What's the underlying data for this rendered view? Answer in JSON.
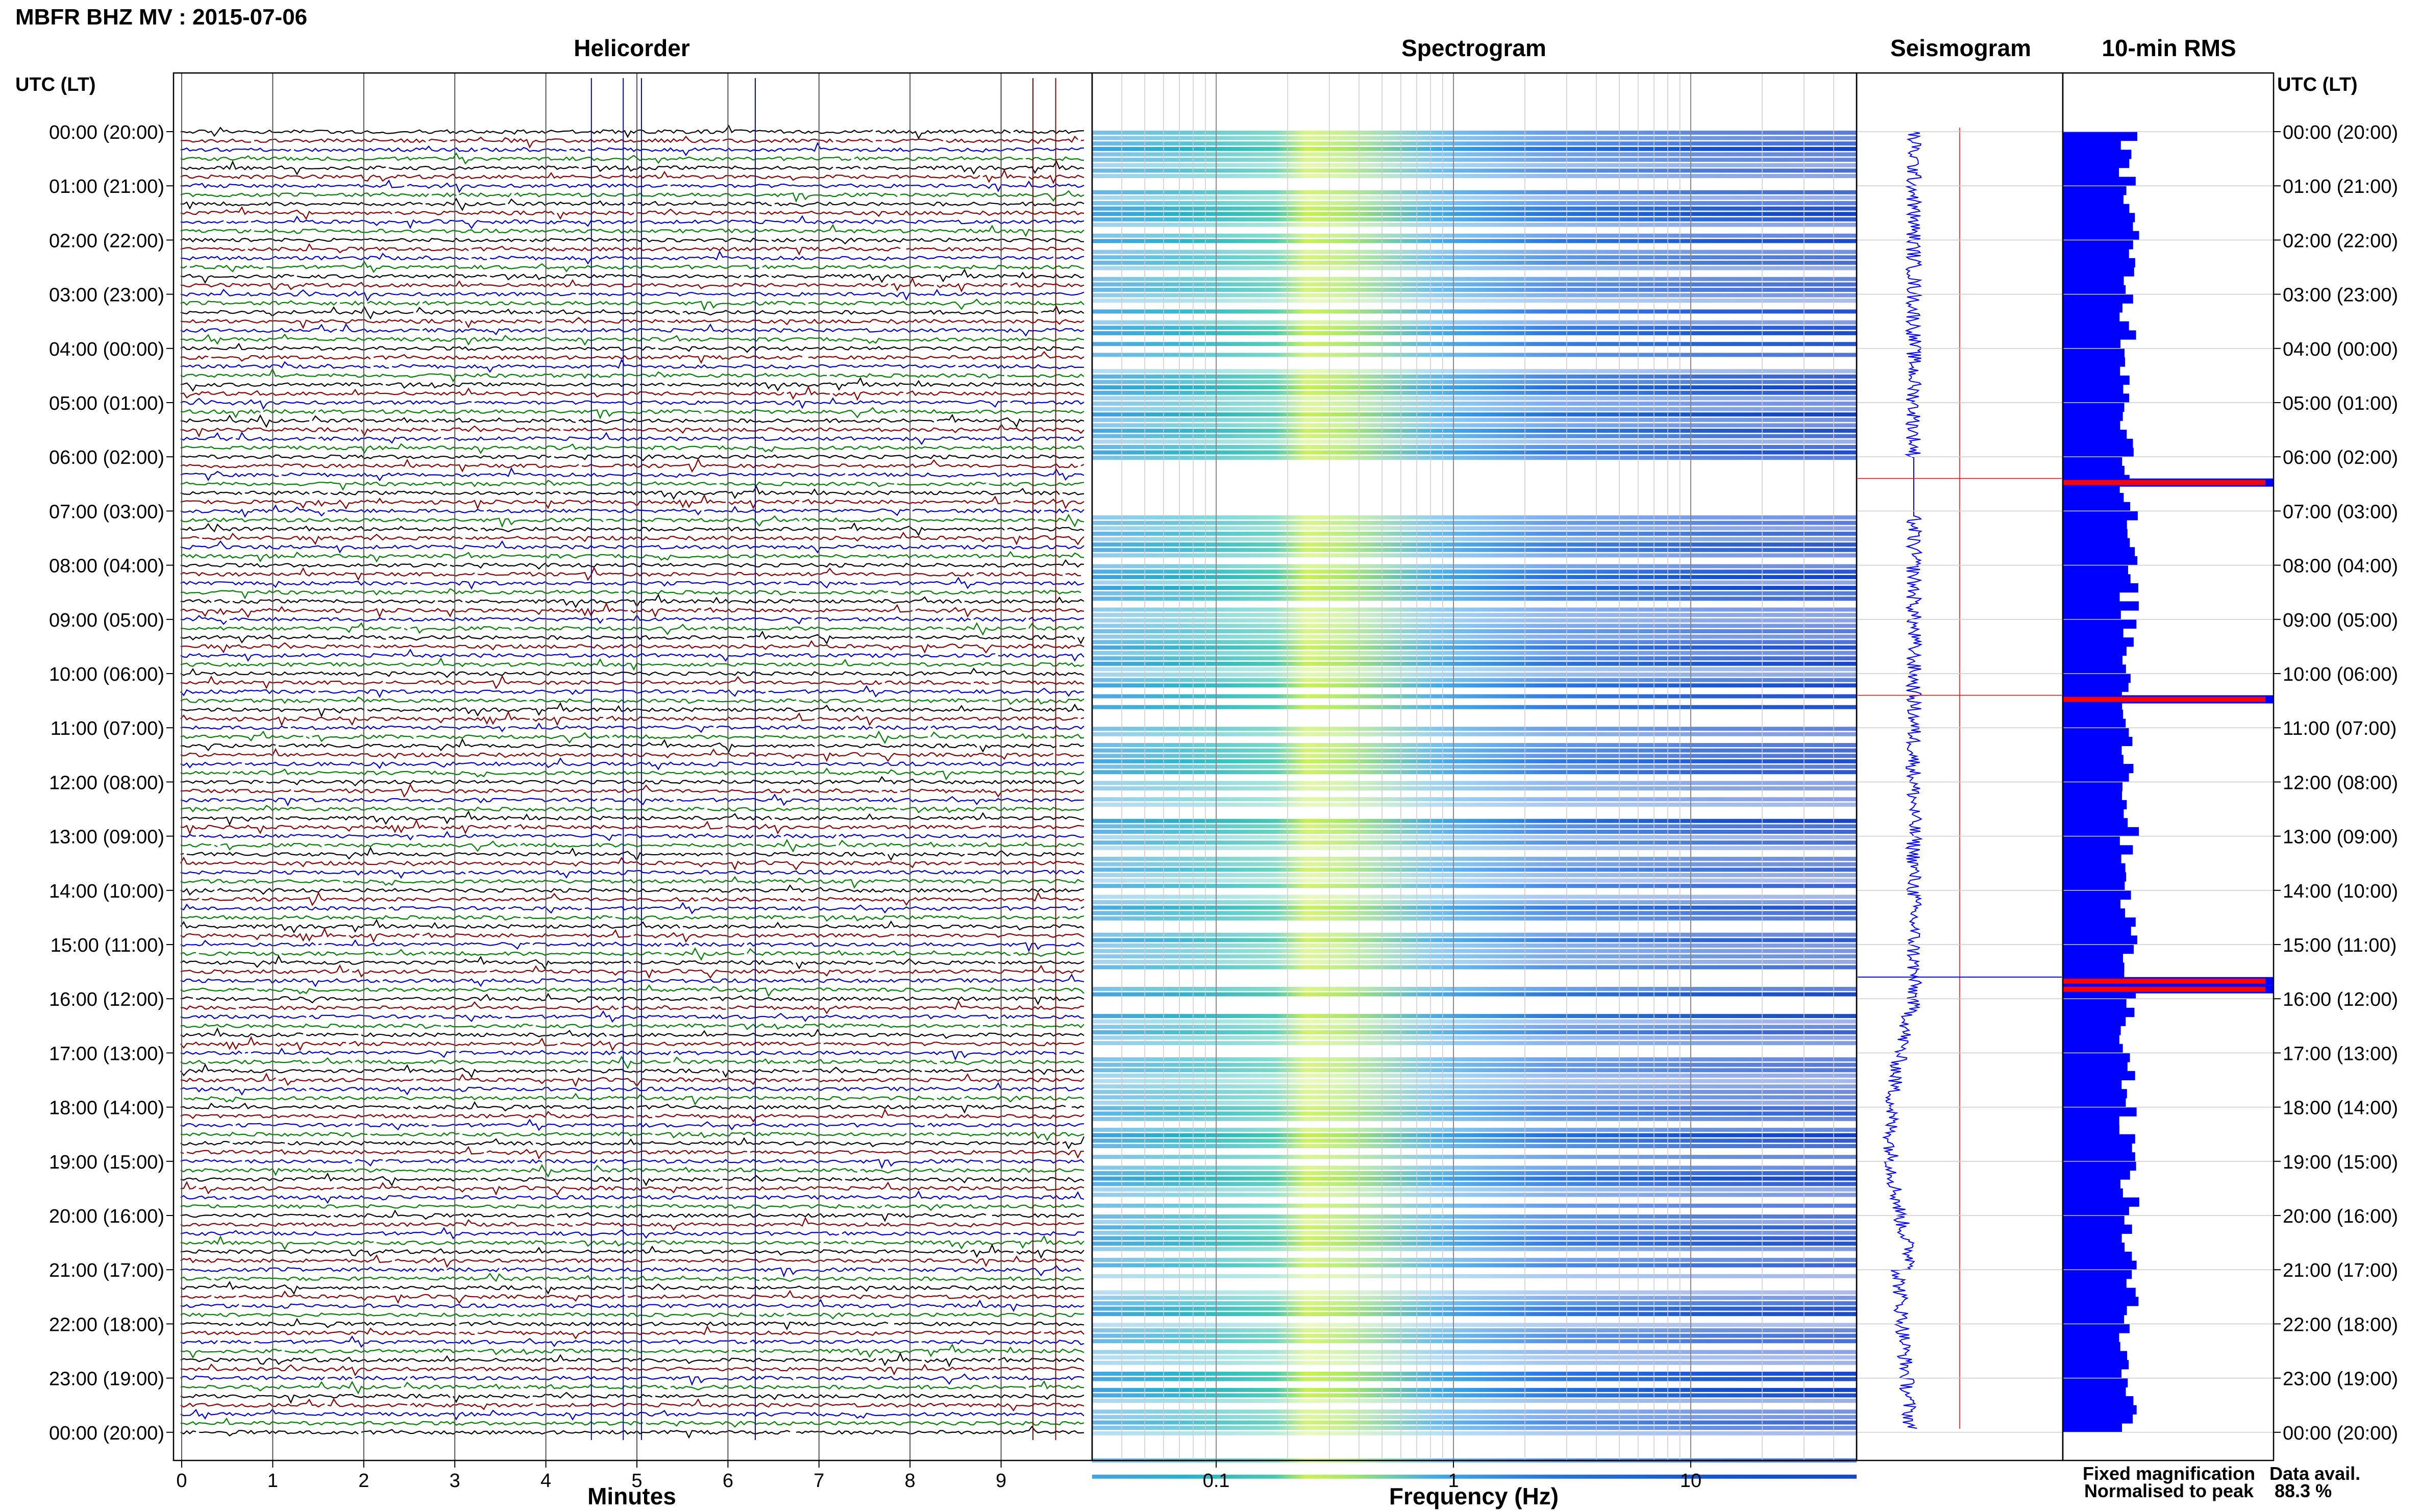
{
  "header": {
    "station_title": "MBFR BHZ MV : 2015-07-06",
    "utc_lt_left": "UTC (LT)",
    "utc_lt_right": "UTC (LT)"
  },
  "panels": {
    "helicorder": "Helicorder",
    "spectrogram": "Spectrogram",
    "seismogram": "Seismogram",
    "rms": "10-min RMS"
  },
  "chart_data": {
    "type": "heatmap",
    "time_labels": [
      "00:00 (20:00)",
      "01:00 (21:00)",
      "02:00 (22:00)",
      "03:00 (23:00)",
      "04:00 (00:00)",
      "05:00 (01:00)",
      "06:00 (02:00)",
      "07:00 (03:00)",
      "08:00 (04:00)",
      "09:00 (05:00)",
      "10:00 (06:00)",
      "11:00 (07:00)",
      "12:00 (08:00)",
      "13:00 (09:00)",
      "14:00 (10:00)",
      "15:00 (11:00)",
      "16:00 (12:00)",
      "17:00 (13:00)",
      "18:00 (14:00)",
      "19:00 (15:00)",
      "20:00 (16:00)",
      "21:00 (17:00)",
      "22:00 (18:00)",
      "23:00 (19:00)",
      "00:00 (20:00)"
    ],
    "helicorder": {
      "xlabel": "Minutes",
      "x_ticks": [
        "0",
        "1",
        "2",
        "3",
        "4",
        "5",
        "6",
        "7",
        "8",
        "9"
      ],
      "xlim": [
        0,
        10
      ],
      "trace_colors": [
        "#000000",
        "#8b0000",
        "#0000cc",
        "#008000"
      ]
    },
    "spectrogram": {
      "xlabel": "Frequency (Hz)",
      "x_scale": "log",
      "x_ticks": [
        "0.1",
        "1",
        "10"
      ],
      "xlim": [
        0.03,
        50
      ]
    },
    "rms": {
      "rows_per_hour": 6,
      "normalised_peaks_hours": [
        6.4,
        10.4,
        15.6,
        15.75
      ]
    }
  },
  "legend": {
    "fixed": "Fixed magnification",
    "fixed_color": "#0000ff",
    "normalised": "Normalised to peak",
    "normalised_color": "#ff0000"
  },
  "availability": {
    "label": "Data avail.",
    "value": "88.3 %"
  }
}
